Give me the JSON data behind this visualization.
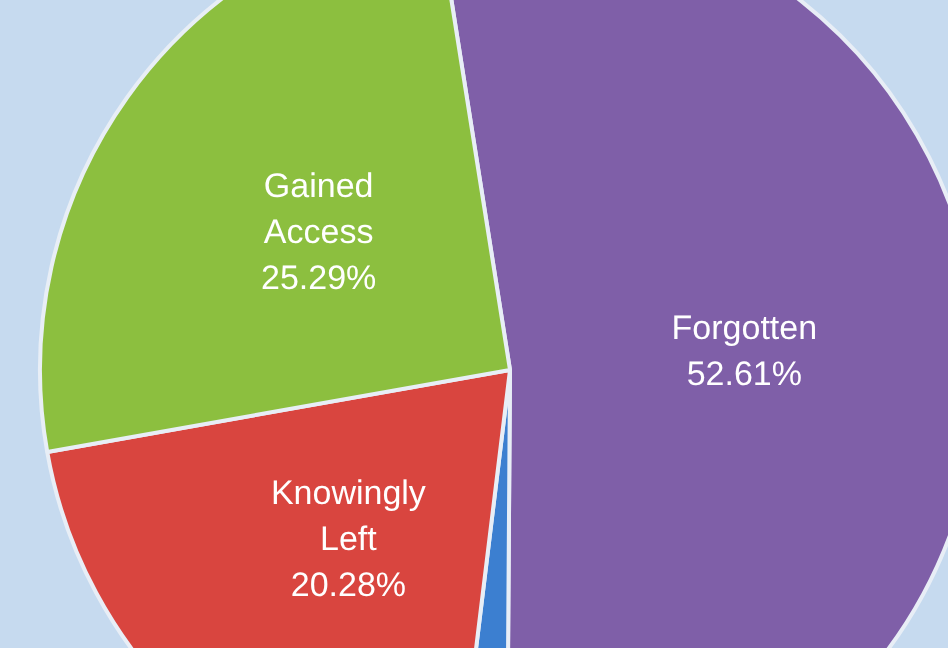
{
  "chart_data": {
    "type": "pie",
    "categories": [
      "Forgotten",
      null,
      "Knowingly Left",
      "Gained Access"
    ],
    "values": [
      52.61,
      1.82,
      20.28,
      25.29
    ],
    "value_labels": [
      "52.61%",
      null,
      "20.28%",
      "25.29%"
    ],
    "colors": [
      "#7f5fa8",
      "#3c7fd0",
      "#d9453f",
      "#8cbf3f"
    ],
    "legend": false
  }
}
